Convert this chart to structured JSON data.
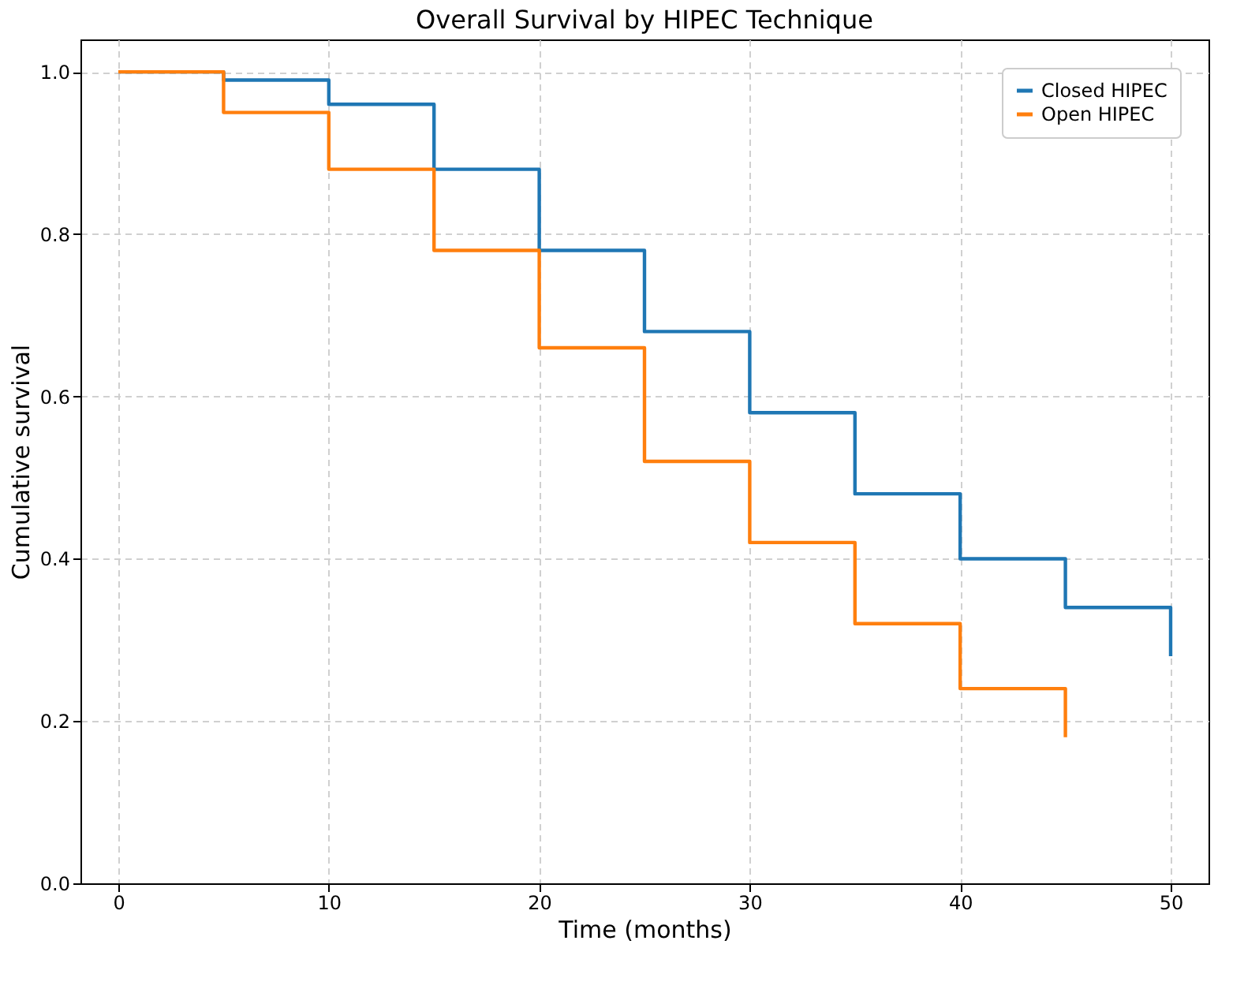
{
  "chart_data": {
    "type": "step",
    "title": "Overall Survival by HIPEC Technique",
    "xlabel": "Time (months)",
    "ylabel": "Cumulative survival",
    "series": [
      {
        "name": "Closed HIPEC",
        "color": "#1f77b4",
        "x": [
          0,
          5,
          10,
          15,
          20,
          25,
          30,
          35,
          40,
          45,
          50
        ],
        "values": [
          1.0,
          0.99,
          0.96,
          0.88,
          0.78,
          0.68,
          0.58,
          0.48,
          0.4,
          0.34,
          0.28
        ]
      },
      {
        "name": "Open HIPEC",
        "color": "#ff7f0e",
        "x": [
          0,
          5,
          10,
          15,
          20,
          25,
          30,
          35,
          40,
          45
        ],
        "values": [
          1.0,
          0.95,
          0.88,
          0.78,
          0.66,
          0.52,
          0.42,
          0.32,
          0.24,
          0.18
        ]
      }
    ],
    "xlim": [
      -1.8,
      51.8
    ],
    "xticks": [
      0,
      10,
      20,
      30,
      40,
      50
    ],
    "ylim": [
      0,
      1.04
    ],
    "yticks": [
      {
        "value": 0,
        "label": "0.0"
      },
      0.2,
      0.4,
      0.6,
      0.8,
      {
        "value": 1,
        "label": "1.0"
      }
    ],
    "grid": true,
    "legend": "top right",
    "line_style": "solid"
  }
}
